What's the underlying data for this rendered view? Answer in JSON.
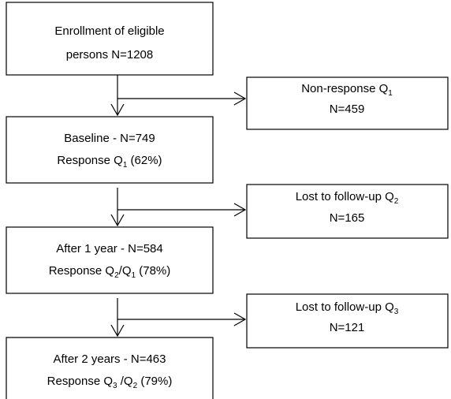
{
  "nodes": [
    {
      "lines": [
        [
          "Enrollment of eligible"
        ],
        [
          "persons N=1208"
        ]
      ]
    },
    {
      "lines": [
        [
          "Non-response Q",
          {
            "text": "1",
            "sub": true
          }
        ],
        [
          "N=459"
        ]
      ]
    },
    {
      "lines": [
        [
          "Baseline - N=749"
        ],
        [
          "Response Q",
          {
            "text": "1",
            "sub": true
          },
          " (62%)"
        ]
      ]
    },
    {
      "lines": [
        [
          "Lost to follow-up Q",
          {
            "text": "2",
            "sub": true
          }
        ],
        [
          "N=165"
        ]
      ]
    },
    {
      "lines": [
        [
          "After 1 year - N=584"
        ],
        [
          "Response Q",
          {
            "text": "2",
            "sub": true
          },
          "/Q",
          {
            "text": "1",
            "sub": true
          },
          " (78%)"
        ]
      ]
    },
    {
      "lines": [
        [
          "Lost to follow-up Q",
          {
            "text": "3",
            "sub": true
          }
        ],
        [
          "N=121"
        ]
      ]
    },
    {
      "lines": [
        [
          "After 2 years - N=463"
        ],
        [
          "Response Q",
          {
            "text": "3",
            "sub": true
          },
          " /Q",
          {
            "text": "2",
            "sub": true
          },
          " (79%)"
        ]
      ]
    }
  ]
}
